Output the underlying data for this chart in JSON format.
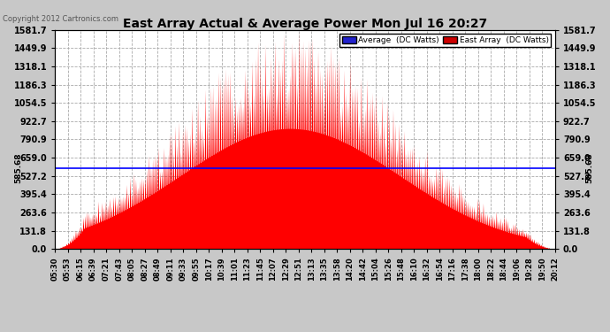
{
  "title": "East Array Actual & Average Power Mon Jul 16 20:27",
  "copyright": "Copyright 2012 Cartronics.com",
  "avg_value": 585.68,
  "ymax": 1581.7,
  "ymin": 0.0,
  "yticks": [
    0.0,
    131.8,
    263.6,
    395.4,
    527.2,
    659.0,
    790.9,
    922.7,
    1054.5,
    1186.3,
    1318.1,
    1449.9,
    1581.7
  ],
  "bg_color": "#c8c8c8",
  "plot_bg_color": "#ffffff",
  "grid_color": "#aaaaaa",
  "area_color": "#ff0000",
  "avg_line_color": "#0000ff",
  "title_color": "#000000",
  "xtick_labels": [
    "05:30",
    "05:53",
    "06:15",
    "06:39",
    "07:21",
    "07:43",
    "08:05",
    "08:27",
    "08:49",
    "09:11",
    "09:33",
    "09:55",
    "10:17",
    "10:39",
    "11:01",
    "11:23",
    "11:45",
    "12:07",
    "12:29",
    "12:51",
    "13:13",
    "13:35",
    "13:58",
    "14:20",
    "14:42",
    "15:04",
    "15:26",
    "15:48",
    "16:10",
    "16:32",
    "16:54",
    "17:16",
    "17:38",
    "18:00",
    "18:22",
    "18:44",
    "19:06",
    "19:28",
    "19:50",
    "20:12"
  ],
  "num_points": 800,
  "seed": 42
}
